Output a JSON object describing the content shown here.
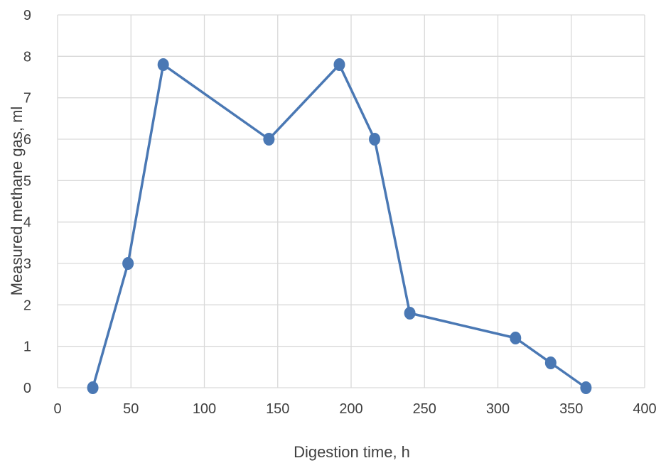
{
  "chart_data": {
    "type": "scatter",
    "title": "",
    "xlabel": "Digestion time, h",
    "ylabel": "Measured methane gas, ml",
    "xlim": [
      0,
      400
    ],
    "ylim": [
      0,
      9
    ],
    "x_ticks": [
      0,
      50,
      100,
      150,
      200,
      250,
      300,
      350,
      400
    ],
    "y_ticks": [
      0,
      1,
      2,
      3,
      4,
      5,
      6,
      7,
      8,
      9
    ],
    "grid": true,
    "legend": "none",
    "series": [
      {
        "color": "#4a78b4",
        "markers": true,
        "lines": true,
        "x": [
          24,
          48,
          72,
          144,
          192,
          216,
          240,
          312,
          336,
          360
        ],
        "y": [
          0,
          3,
          7.8,
          6,
          7.8,
          6,
          1.8,
          1.2,
          0.6,
          0
        ]
      }
    ]
  }
}
